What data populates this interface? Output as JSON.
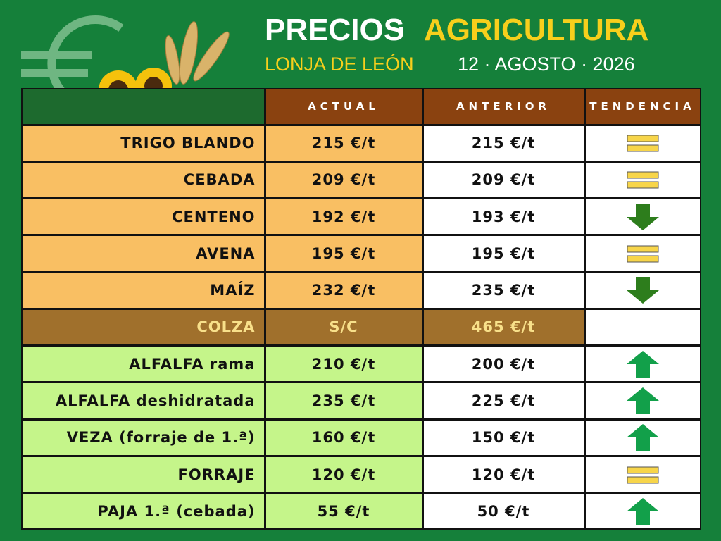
{
  "header": {
    "title": "PRECIOS",
    "separator": "·",
    "title_accent": "AGRICULTURA",
    "subtitle": "LONJA DE LEÓN",
    "date": "12 · AGOSTO · 2026"
  },
  "table": {
    "columns": [
      "ACTUAL",
      "ANTERIOR",
      "TENDENCIA"
    ],
    "rows": [
      {
        "name": "TRIGO BLANDO",
        "actual": "215 €/t",
        "anterior": "215 €/t",
        "trend": "equal",
        "colors": [
          "#f9bf63",
          "#f9bf63",
          "#ffffff",
          "#ffffff"
        ],
        "text_color": "#111111"
      },
      {
        "name": "CEBADA",
        "actual": "209 €/t",
        "anterior": "209 €/t",
        "trend": "equal",
        "colors": [
          "#f9bf63",
          "#f9bf63",
          "#ffffff",
          "#ffffff"
        ],
        "text_color": "#111111"
      },
      {
        "name": "CENTENO",
        "actual": "192 €/t",
        "anterior": "193 €/t",
        "trend": "down",
        "colors": [
          "#f9bf63",
          "#f9bf63",
          "#ffffff",
          "#ffffff"
        ],
        "text_color": "#111111"
      },
      {
        "name": "AVENA",
        "actual": "195 €/t",
        "anterior": "195 €/t",
        "trend": "equal",
        "colors": [
          "#f9bf63",
          "#f9bf63",
          "#ffffff",
          "#ffffff"
        ],
        "text_color": "#111111"
      },
      {
        "name": "MAÍZ",
        "actual": "232 €/t",
        "anterior": "235 €/t",
        "trend": "down",
        "colors": [
          "#f9bf63",
          "#f9bf63",
          "#ffffff",
          "#ffffff"
        ],
        "text_color": "#111111"
      },
      {
        "name": "COLZA",
        "actual": "S/C",
        "anterior": "465 €/t",
        "trend": null,
        "colors": [
          "#a0702c",
          "#a0702c",
          "#a0702c",
          "#ffffff"
        ],
        "text_color": "#f8e08a"
      },
      {
        "name": "ALFALFA rama",
        "actual": "210 €/t",
        "anterior": "200 €/t",
        "trend": "up",
        "colors": [
          "#c5f58a",
          "#c5f58a",
          "#ffffff",
          "#ffffff"
        ],
        "text_color": "#111111"
      },
      {
        "name": "ALFALFA deshidratada",
        "actual": "235 €/t",
        "anterior": "225 €/t",
        "trend": "up",
        "colors": [
          "#c5f58a",
          "#c5f58a",
          "#ffffff",
          "#ffffff"
        ],
        "text_color": "#111111"
      },
      {
        "name": "VEZA (forraje de 1.ª)",
        "actual": "160 €/t",
        "anterior": "150 €/t",
        "trend": "up",
        "colors": [
          "#c5f58a",
          "#c5f58a",
          "#ffffff",
          "#ffffff"
        ],
        "text_color": "#111111"
      },
      {
        "name": "FORRAJE",
        "actual": "120 €/t",
        "anterior": "120 €/t",
        "trend": "equal",
        "colors": [
          "#c5f58a",
          "#c5f58a",
          "#ffffff",
          "#ffffff"
        ],
        "text_color": "#111111"
      },
      {
        "name": "PAJA 1.ª (cebada)",
        "actual": "55 €/t",
        "anterior": "50 €/t",
        "trend": "up",
        "colors": [
          "#c5f58a",
          "#c5f58a",
          "#ffffff",
          "#ffffff"
        ],
        "text_color": "#111111"
      }
    ]
  }
}
